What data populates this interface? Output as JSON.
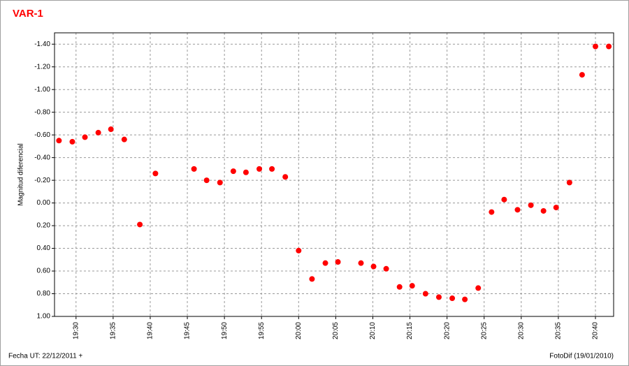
{
  "chart_data": {
    "type": "scatter",
    "title": "VAR-1",
    "y_label": "Magnitud diferencial",
    "footer_left": "Fecha UT: 22/12/2011 +",
    "footer_right": "FotoDif (19/01/2010)",
    "color": "#ff0000",
    "grid": true,
    "x": [
      1167.7,
      1169.5,
      1171.2,
      1173.0,
      1174.7,
      1176.5,
      1178.6,
      1180.7,
      1185.9,
      1187.6,
      1189.4,
      1191.2,
      1192.9,
      1194.7,
      1196.4,
      1198.2,
      1200.0,
      1201.8,
      1203.6,
      1205.3,
      1208.4,
      1210.1,
      1211.8,
      1213.6,
      1215.3,
      1217.1,
      1218.9,
      1220.7,
      1222.4,
      1224.2,
      1226.0,
      1227.7,
      1229.5,
      1231.3,
      1233.0,
      1234.7,
      1236.5,
      1238.2,
      1240.0,
      1241.8
    ],
    "values": [
      -0.55,
      -0.54,
      -0.58,
      -0.62,
      -0.65,
      -0.56,
      0.19,
      -0.26,
      -0.3,
      -0.2,
      -0.18,
      -0.28,
      -0.27,
      -0.3,
      -0.3,
      -0.23,
      0.42,
      0.67,
      0.53,
      0.52,
      0.53,
      0.56,
      0.58,
      0.74,
      0.73,
      0.8,
      0.83,
      0.84,
      0.85,
      0.75,
      0.08,
      -0.03,
      0.06,
      0.02,
      0.07,
      0.04,
      -0.18,
      -1.13,
      -1.38,
      -1.38
    ],
    "xlim": [
      1167.1,
      1242.45
    ],
    "xticks": [
      {
        "value": 1170,
        "label": "19:30"
      },
      {
        "value": 1175,
        "label": "19:35"
      },
      {
        "value": 1180,
        "label": "19:40"
      },
      {
        "value": 1185,
        "label": "19:45"
      },
      {
        "value": 1190,
        "label": "19:50"
      },
      {
        "value": 1195,
        "label": "19:55"
      },
      {
        "value": 1200,
        "label": "20:00"
      },
      {
        "value": 1205,
        "label": "20:05"
      },
      {
        "value": 1210,
        "label": "20:10"
      },
      {
        "value": 1215,
        "label": "20:15"
      },
      {
        "value": 1220,
        "label": "20:20"
      },
      {
        "value": 1225,
        "label": "20:25"
      },
      {
        "value": 1230,
        "label": "20:30"
      },
      {
        "value": 1235,
        "label": "20:35"
      },
      {
        "value": 1240,
        "label": "20:40"
      }
    ],
    "ylim": [
      1.0,
      -1.5
    ],
    "yticks": [
      {
        "value": -1.4,
        "label": "-1.40"
      },
      {
        "value": -1.2,
        "label": "-1.20"
      },
      {
        "value": -1.0,
        "label": "-1.00"
      },
      {
        "value": -0.8,
        "label": "-0.80"
      },
      {
        "value": -0.6,
        "label": "-0.60"
      },
      {
        "value": -0.4,
        "label": "-0.40"
      },
      {
        "value": -0.2,
        "label": "-0.20"
      },
      {
        "value": 0,
        "label": "0.00"
      },
      {
        "value": 0.2,
        "label": "0.20"
      },
      {
        "value": 0.4,
        "label": "0.40"
      },
      {
        "value": 0.6,
        "label": "0.60"
      },
      {
        "value": 0.8,
        "label": "0.80"
      },
      {
        "value": 1.0,
        "label": "1.00"
      }
    ]
  }
}
